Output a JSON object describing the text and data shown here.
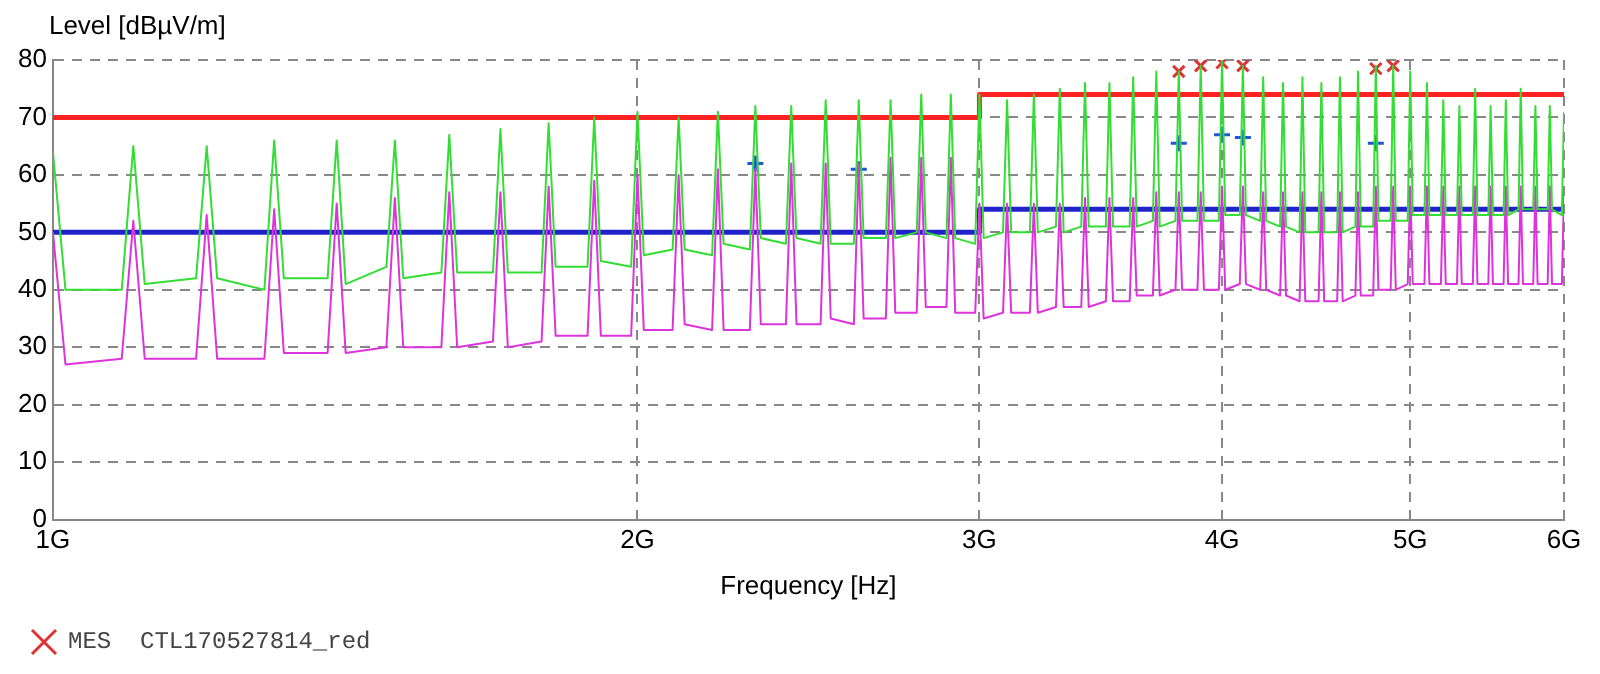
{
  "chart_data": {
    "type": "line",
    "xlabel": "Frequency [Hz]",
    "ylabel": "Level [dBµV/m]",
    "log": "x",
    "grid": true,
    "legend": "bottom",
    "marker": "none",
    "line_style": "solid",
    "xlim": [
      1,
      6
    ],
    "ylim": [
      0,
      80
    ],
    "xticks": [
      {
        "value": 1,
        "label": "1G"
      },
      {
        "value": 2,
        "label": "2G"
      },
      {
        "value": 3,
        "label": "3G"
      },
      {
        "value": 4,
        "label": "4G"
      },
      {
        "value": 5,
        "label": "5G"
      },
      {
        "value": 6,
        "label": "6G"
      }
    ],
    "yticks": [
      0,
      10,
      20,
      30,
      40,
      50,
      60,
      70,
      80
    ],
    "x": [
      1.0,
      1.015,
      1.085,
      1.1,
      1.115,
      1.185,
      1.2,
      1.215,
      1.285,
      1.3,
      1.315,
      1.385,
      1.4,
      1.415,
      1.485,
      1.5,
      1.515,
      1.585,
      1.6,
      1.615,
      1.685,
      1.7,
      1.715,
      1.785,
      1.8,
      1.815,
      1.885,
      1.9,
      1.915,
      1.985,
      2.0,
      2.015,
      2.085,
      2.1,
      2.115,
      2.185,
      2.2,
      2.215,
      2.285,
      2.3,
      2.315,
      2.385,
      2.4,
      2.415,
      2.485,
      2.5,
      2.515,
      2.585,
      2.6,
      2.615,
      2.685,
      2.7,
      2.715,
      2.785,
      2.8,
      2.815,
      2.885,
      2.9,
      2.915,
      2.985,
      3.0,
      3.015,
      3.085,
      3.1,
      3.115,
      3.185,
      3.2,
      3.215,
      3.285,
      3.3,
      3.315,
      3.385,
      3.4,
      3.415,
      3.485,
      3.5,
      3.515,
      3.585,
      3.6,
      3.615,
      3.685,
      3.7,
      3.715,
      3.785,
      3.8,
      3.815,
      3.885,
      3.9,
      3.915,
      3.985,
      4.0,
      4.015,
      4.085,
      4.1,
      4.115,
      4.185,
      4.2,
      4.215,
      4.285,
      4.3,
      4.315,
      4.385,
      4.4,
      4.415,
      4.485,
      4.5,
      4.515,
      4.585,
      4.6,
      4.615,
      4.685,
      4.7,
      4.715,
      4.785,
      4.8,
      4.815,
      4.885,
      4.9,
      4.915,
      4.985,
      5.0,
      5.015,
      5.085,
      5.1,
      5.115,
      5.185,
      5.2,
      5.215,
      5.285,
      5.3,
      5.315,
      5.385,
      5.4,
      5.415,
      5.485,
      5.5,
      5.515,
      5.585,
      5.6,
      5.615,
      5.685,
      5.7,
      5.715,
      5.785,
      5.8,
      5.815,
      5.885,
      5.9,
      5.915,
      5.985,
      6.0
    ],
    "series": [
      {
        "color": "#33dd33",
        "values": [
          64,
          40,
          40,
          65,
          41,
          42,
          65,
          42,
          40,
          66,
          42,
          42,
          66,
          41,
          44,
          66,
          42,
          43,
          67,
          43,
          43,
          68,
          43,
          43,
          69,
          44,
          44,
          70,
          45,
          44,
          71,
          46,
          47,
          70,
          47,
          46,
          71,
          48,
          47,
          72,
          49,
          48,
          72,
          49,
          48,
          73,
          48,
          48,
          73,
          49,
          49,
          73,
          49,
          50,
          74,
          50,
          49,
          74,
          49,
          48,
          74,
          49,
          50,
          73,
          50,
          50,
          74,
          50,
          51,
          75,
          50,
          51,
          76,
          51,
          51,
          76,
          51,
          51,
          77,
          51,
          52,
          78,
          51,
          52,
          78,
          52,
          52,
          79,
          52,
          52,
          80,
          53,
          53,
          79,
          53,
          52,
          77,
          52,
          51,
          76,
          51,
          50,
          77,
          50,
          50,
          76,
          50,
          50,
          77,
          50,
          51,
          78,
          51,
          51,
          79,
          52,
          52,
          79,
          52,
          52,
          78,
          53,
          53,
          76,
          53,
          53,
          73,
          53,
          53,
          72,
          53,
          53,
          75,
          53,
          53,
          72,
          53,
          53,
          73,
          53,
          54,
          75,
          54,
          54,
          72,
          54,
          54,
          72,
          54,
          53,
          71
        ]
      },
      {
        "color": "#dd33dd",
        "values": [
          50,
          27,
          28,
          52,
          28,
          28,
          53,
          28,
          28,
          54,
          29,
          29,
          55,
          29,
          30,
          56,
          30,
          30,
          57,
          30,
          31,
          57,
          30,
          31,
          58,
          32,
          32,
          59,
          32,
          32,
          60,
          33,
          33,
          60,
          34,
          33,
          61,
          33,
          33,
          61,
          34,
          34,
          62,
          34,
          34,
          62,
          35,
          34,
          62,
          35,
          35,
          63,
          36,
          36,
          63,
          37,
          37,
          63,
          36,
          36,
          55,
          35,
          36,
          55,
          36,
          36,
          55,
          36,
          37,
          55,
          37,
          37,
          56,
          37,
          38,
          56,
          38,
          38,
          56,
          39,
          39,
          57,
          39,
          40,
          57,
          40,
          40,
          57,
          40,
          40,
          58,
          40,
          41,
          58,
          41,
          40,
          57,
          40,
          39,
          57,
          39,
          38,
          57,
          38,
          38,
          57,
          38,
          38,
          57,
          38,
          39,
          57,
          39,
          39,
          58,
          40,
          40,
          58,
          40,
          41,
          58,
          41,
          41,
          58,
          41,
          41,
          58,
          41,
          41,
          58,
          41,
          41,
          58,
          41,
          41,
          58,
          41,
          41,
          58,
          41,
          41,
          58,
          41,
          41,
          58,
          41,
          41,
          58,
          41,
          41,
          57
        ]
      },
      {
        "color": "#ff2222",
        "x": [
          1,
          3,
          3,
          6
        ],
        "values": [
          70,
          70,
          74,
          74
        ]
      },
      {
        "color": "#2222cc",
        "x": [
          1,
          3,
          3,
          6
        ],
        "values": [
          50,
          50,
          54,
          54
        ]
      },
      {
        "type": "scatter",
        "name": "MES  CTL170527814_red",
        "color": "#dd3333",
        "marker": "x",
        "x": [
          3.8,
          3.9,
          4.0,
          4.1,
          4.8,
          4.9
        ],
        "values": [
          78,
          79,
          79.5,
          79,
          78.5,
          79
        ]
      },
      {
        "type": "scatter",
        "color": "#2255dd",
        "marker": "cross",
        "x": [
          2.3,
          2.6,
          3.8,
          4.0,
          4.1,
          4.8
        ],
        "values": [
          62,
          61,
          65.5,
          67,
          66.5,
          65.5
        ]
      }
    ]
  }
}
